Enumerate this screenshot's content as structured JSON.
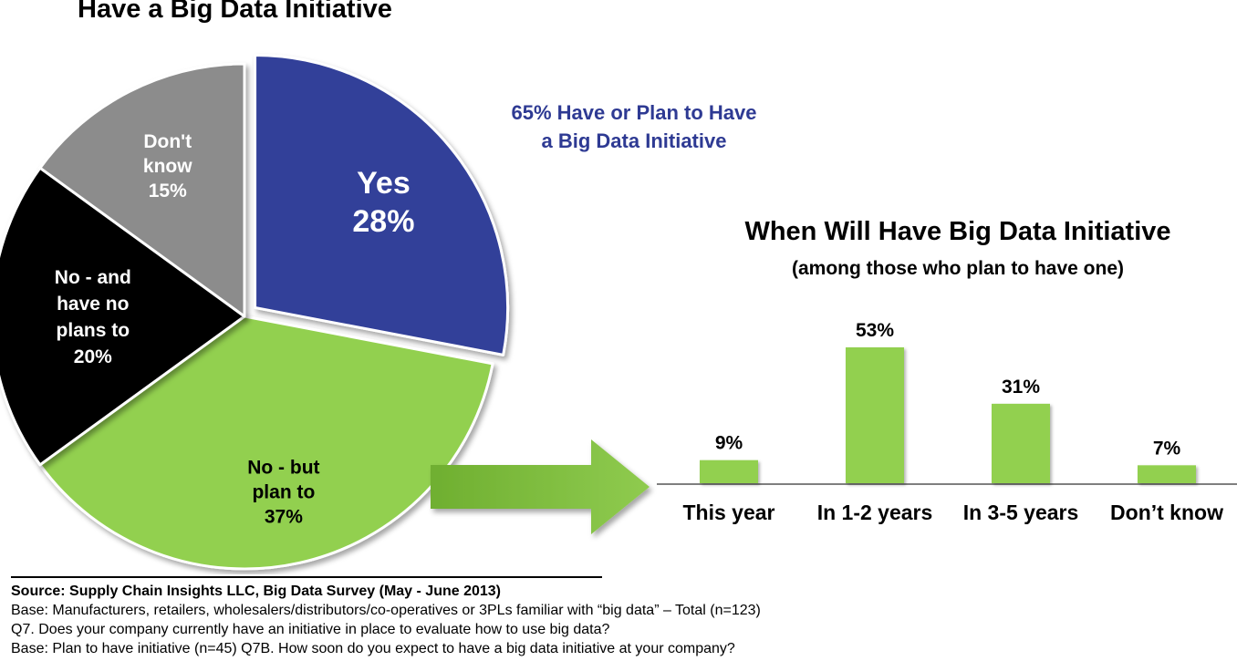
{
  "pie_title": "Have a Big Data Initiative",
  "callout": {
    "line1": "65%  Have or Plan to Have",
    "line2": "a Big Data Initiative"
  },
  "bar_title": "When Will Have Big Data Initiative",
  "bar_subtitle": "(among those who plan to have one)",
  "source": {
    "title": "Source:  Supply Chain Insights LLC, Big Data Survey  (May - June 2013)",
    "notes": [
      "Base:  Manufacturers, retailers, wholesalers/distributors/co-operatives or 3PLs familiar with “big data” – Total (n=123)",
      "Q7. Does your company currently have an initiative in place to evaluate how to use big data?",
      "Base: Plan to have initiative  (n=45)  Q7B. How soon do you expect to have a big data initiative at your company?"
    ]
  },
  "colors": {
    "yes": "#333F99",
    "plan": "#92D050",
    "no": "#000000",
    "dont_know": "#8C8C8C",
    "bar": "#92D050",
    "callout": "#2E3A93",
    "arrow": "#7CBF3B"
  },
  "chart_data": [
    {
      "type": "pie",
      "title": "Have a Big Data Initiative",
      "slices": [
        {
          "label_lines": [
            "Yes",
            "28%"
          ],
          "value": 28,
          "color": "#333F99",
          "exploded": true
        },
        {
          "label_lines": [
            "No - but",
            "plan to",
            "37%"
          ],
          "value": 37,
          "color": "#92D050",
          "exploded": false
        },
        {
          "label_lines": [
            "No - and",
            "have no",
            "plans to",
            "20%"
          ],
          "value": 20,
          "color": "#000000",
          "exploded": false
        },
        {
          "label_lines": [
            "Don't",
            "know",
            "15%"
          ],
          "value": 15,
          "color": "#8C8C8C",
          "exploded": false
        }
      ]
    },
    {
      "type": "bar",
      "title": "When Will Have Big Data Initiative",
      "subtitle": "(among those who plan to have one)",
      "categories": [
        "This year",
        "In 1-2 years",
        "In 3-5 years",
        "Don’t know"
      ],
      "values": [
        9,
        53,
        31,
        7
      ],
      "value_labels": [
        "9%",
        "53%",
        "31%",
        "7%"
      ],
      "unit": "%",
      "grid": false
    }
  ]
}
